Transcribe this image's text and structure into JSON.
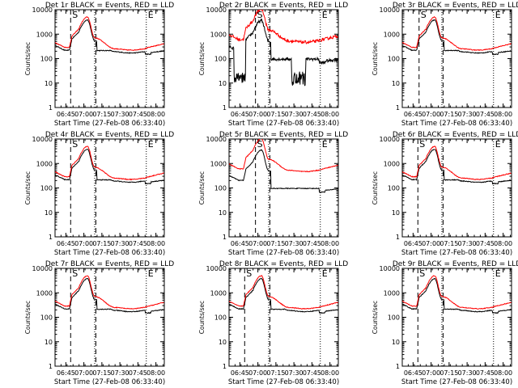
{
  "page": {
    "title_suffix": "BLACK = Events, RED = LLD"
  },
  "chart_data": [
    {
      "type": "line",
      "title": "Det 1r BLACK = Events, RED = LLD",
      "xlabel": "Start Time (27-Feb-08 06:33:40)",
      "ylabel": "Counts/sec",
      "yscale": "log",
      "ylim": [
        1,
        10000
      ],
      "xticks": [
        "06:45",
        "07:00",
        "07:15",
        "07:30",
        "07:45",
        "08:00"
      ],
      "markers": {
        "S": "06:49",
        "E": "07:52"
      },
      "series": [
        {
          "color": "#000000",
          "kind": "events"
        },
        {
          "color": "#ff0000",
          "kind": "lld"
        }
      ]
    },
    {
      "type": "line",
      "title": "Det 2r BLACK = Events, RED = LLD",
      "xlabel": "Start Time (27-Feb-08 06:33:40)",
      "ylabel": "Counts/sec",
      "yscale": "log",
      "ylim": [
        1,
        10000
      ],
      "xticks": [
        "06:45",
        "07:00",
        "07:15",
        "07:30",
        "07:45",
        "08:00"
      ],
      "markers": {
        "S": "06:58",
        "E": "07:52"
      },
      "series": [
        {
          "color": "#000000",
          "kind": "events"
        },
        {
          "color": "#ff0000",
          "kind": "lld"
        }
      ]
    },
    {
      "type": "line",
      "title": "Det 3r BLACK = Events, RED = LLD",
      "xlabel": "Start Time (27-Feb-08 06:33:40)",
      "ylabel": "Counts/sec",
      "yscale": "log",
      "ylim": [
        1,
        10000
      ],
      "xticks": [
        "06:45",
        "07:00",
        "07:15",
        "07:30",
        "07:45",
        "08:00"
      ],
      "markers": {
        "S": "06:50",
        "E": "07:52"
      },
      "series": [
        {
          "color": "#000000",
          "kind": "events"
        },
        {
          "color": "#ff0000",
          "kind": "lld"
        }
      ]
    },
    {
      "type": "line",
      "title": "Det 4r BLACK = Events, RED = LLD",
      "xlabel": "Start Time (27-Feb-08 06:33:40)",
      "ylabel": "Counts/sec",
      "yscale": "log",
      "ylim": [
        1,
        10000
      ],
      "xticks": [
        "06:45",
        "07:00",
        "07:15",
        "07:30",
        "07:45",
        "08:00"
      ],
      "markers": {
        "S": "06:49",
        "E": "07:52"
      },
      "series": [
        {
          "color": "#000000",
          "kind": "events"
        },
        {
          "color": "#ff0000",
          "kind": "lld"
        }
      ]
    },
    {
      "type": "line",
      "title": "Det 5r BLACK = Events, RED = LLD",
      "xlabel": "Start Time (27-Feb-08 06:33:40)",
      "ylabel": "Counts/sec",
      "yscale": "log",
      "ylim": [
        1,
        10000
      ],
      "xticks": [
        "06:45",
        "07:00",
        "07:15",
        "07:30",
        "07:45",
        "08:00"
      ],
      "markers": {
        "S": "06:58",
        "E": "07:52"
      },
      "series": [
        {
          "color": "#000000",
          "kind": "events"
        },
        {
          "color": "#ff0000",
          "kind": "lld"
        }
      ]
    },
    {
      "type": "line",
      "title": "Det 6r BLACK = Events, RED = LLD",
      "xlabel": "Start Time (27-Feb-08 06:33:40)",
      "ylabel": "Counts/sec",
      "yscale": "log",
      "ylim": [
        1,
        10000
      ],
      "xticks": [
        "06:45",
        "07:00",
        "07:15",
        "07:30",
        "07:45",
        "08:00"
      ],
      "markers": {
        "S": "06:49",
        "E": "07:52"
      },
      "series": [
        {
          "color": "#000000",
          "kind": "events"
        },
        {
          "color": "#ff0000",
          "kind": "lld"
        }
      ]
    },
    {
      "type": "line",
      "title": "Det 7r BLACK = Events, RED = LLD",
      "xlabel": "Start Time (27-Feb-08 06:33:40)",
      "ylabel": "Counts/sec",
      "yscale": "log",
      "ylim": [
        1,
        10000
      ],
      "xticks": [
        "06:45",
        "07:00",
        "07:15",
        "07:30",
        "07:45",
        "08:00"
      ],
      "markers": {
        "S": "06:49",
        "E": "07:52"
      },
      "series": [
        {
          "color": "#000000",
          "kind": "events"
        },
        {
          "color": "#ff0000",
          "kind": "lld"
        }
      ]
    },
    {
      "type": "line",
      "title": "Det 8r BLACK = Events, RED = LLD",
      "xlabel": "Start Time (27-Feb-08 06:33:40)",
      "ylabel": "Counts/sec",
      "yscale": "log",
      "ylim": [
        1,
        10000
      ],
      "xticks": [
        "06:45",
        "07:00",
        "07:15",
        "07:30",
        "07:45",
        "08:00"
      ],
      "markers": {
        "S": "06:49",
        "E": "07:52"
      },
      "series": [
        {
          "color": "#000000",
          "kind": "events"
        },
        {
          "color": "#ff0000",
          "kind": "lld"
        }
      ]
    },
    {
      "type": "line",
      "title": "Det 9r BLACK = Events, RED = LLD",
      "xlabel": "Start Time (27-Feb-08 06:33:40)",
      "ylabel": "Counts/sec",
      "yscale": "log",
      "ylim": [
        1,
        10000
      ],
      "xticks": [
        "06:45",
        "07:00",
        "07:15",
        "07:30",
        "07:45",
        "08:00"
      ],
      "markers": {
        "S": "06:49",
        "E": "07:52"
      },
      "series": [
        {
          "color": "#000000",
          "kind": "events"
        },
        {
          "color": "#ff0000",
          "kind": "lld"
        }
      ]
    }
  ]
}
